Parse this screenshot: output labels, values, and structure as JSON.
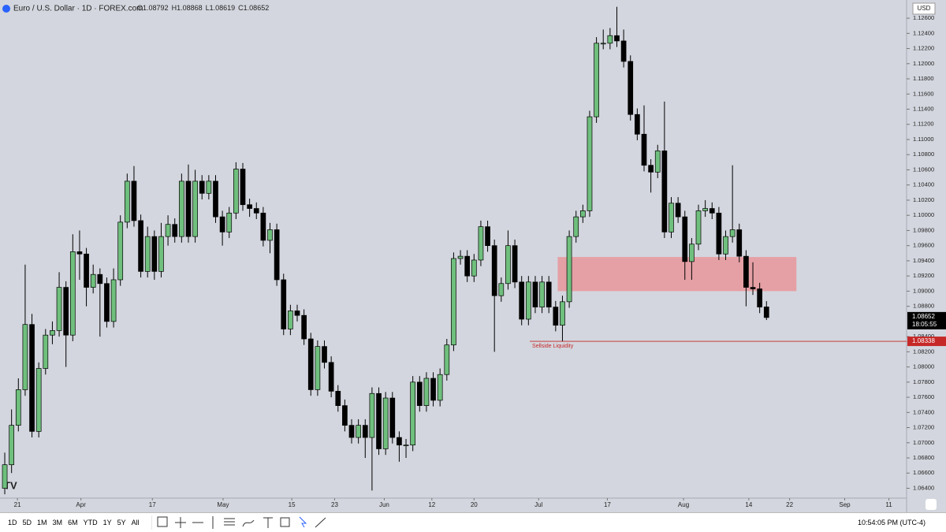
{
  "header": {
    "title": "Euro / U.S. Dollar · 1D · FOREX.com",
    "ohlc_labels": [
      "O",
      "H",
      "L",
      "C"
    ]
  },
  "chart_data": {
    "type": "candlestick",
    "open": [
      1.064,
      1.0671,
      1.0723,
      1.077,
      1.0856,
      1.0715,
      1.0798,
      1.0842,
      1.0848,
      1.0905,
      1.0842,
      1.0952,
      1.0949,
      1.0905,
      1.0922,
      1.091,
      1.086,
      1.0915,
      1.0991,
      1.1045,
      1.0993,
      1.0926,
      1.0972,
      1.0926,
      1.0972,
      1.0988,
      1.0972,
      1.1045,
      1.0972,
      1.1045,
      1.1029,
      1.1045,
      1.0998,
      1.0978,
      1.1003,
      1.1061,
      1.1014,
      1.1009,
      1.1003,
      1.0967,
      1.0981,
      1.0915,
      1.085,
      1.0874,
      1.0868,
      1.0837,
      1.077,
      1.0827,
      1.0806,
      1.0768,
      1.0749,
      1.0723,
      1.0707,
      1.0723,
      1.0707,
      1.0765,
      1.0692,
      1.0759,
      1.0707,
      1.0697,
      1.0697,
      1.078,
      1.0749,
      1.0785,
      1.0756,
      1.079,
      1.0829,
      1.0943,
      1.0946,
      1.092,
      1.0941,
      1.0985,
      1.096,
      1.0894,
      1.091,
      1.096,
      1.0912,
      1.0863,
      1.0912,
      1.0879,
      1.0912,
      1.0879,
      1.0855,
      1.0886,
      1.0972,
      1.0998,
      1.1006,
      1.113,
      1.1227,
      1.1227,
      1.1237,
      1.123,
      1.1203,
      1.1133,
      1.1107,
      1.1066,
      1.1057,
      1.1085,
      1.0978,
      1.1016,
      1.0998,
      1.0939,
      1.0962,
      1.1006,
      1.1009,
      1.1003,
      1.0949,
      1.0972,
      1.0981,
      1.0946,
      1.0905,
      1.0903,
      1.08792
    ],
    "high": [
      1.0687,
      1.0744,
      1.0785,
      1.0935,
      1.087,
      1.0806,
      1.085,
      1.086,
      1.0925,
      1.0913,
      1.0975,
      1.098,
      1.0957,
      1.0935,
      1.093,
      1.0918,
      1.093,
      1.1,
      1.1055,
      1.1065,
      1.1001,
      1.0985,
      1.098,
      1.099,
      1.1,
      1.0996,
      1.1055,
      1.1067,
      1.106,
      1.1053,
      1.1053,
      1.1053,
      1.1006,
      1.1011,
      1.107,
      1.1069,
      1.1022,
      1.1017,
      1.1011,
      1.099,
      1.0989,
      1.0923,
      1.0882,
      1.0882,
      1.0876,
      1.0845,
      1.0835,
      1.0835,
      1.0814,
      1.0776,
      1.0757,
      1.0731,
      1.0731,
      1.0731,
      1.0773,
      1.0773,
      1.0767,
      1.0767,
      1.0715,
      1.0705,
      1.0788,
      1.0788,
      1.0793,
      1.0793,
      1.0798,
      1.0837,
      1.0951,
      1.0954,
      1.0954,
      1.0949,
      1.0993,
      1.0993,
      1.0968,
      1.0918,
      1.098,
      1.0968,
      1.092,
      1.092,
      1.092,
      1.092,
      1.092,
      1.0887,
      1.0894,
      1.098,
      1.1006,
      1.1014,
      1.1138,
      1.1235,
      1.1245,
      1.1247,
      1.1275,
      1.1245,
      1.1211,
      1.1141,
      1.1145,
      1.1074,
      1.1093,
      1.115,
      1.1024,
      1.1024,
      1.1006,
      1.097,
      1.1014,
      1.102,
      1.1017,
      1.1011,
      1.098,
      1.1066,
      1.0989,
      1.0954,
      1.0938,
      1.0911,
      1.08868
    ],
    "low": [
      1.0632,
      1.066,
      1.0715,
      1.0762,
      1.0707,
      1.0707,
      1.079,
      1.083,
      1.084,
      1.08,
      1.0834,
      1.0915,
      1.088,
      1.0897,
      1.084,
      1.0852,
      1.0852,
      1.0907,
      1.0983,
      1.0985,
      1.0918,
      1.0918,
      1.0915,
      1.0918,
      1.096,
      1.0964,
      1.0964,
      1.0964,
      1.0964,
      1.1021,
      1.1021,
      1.099,
      1.096,
      1.097,
      1.0995,
      1.1006,
      1.0998,
      1.0995,
      1.0959,
      1.095,
      1.0907,
      1.0842,
      1.0842,
      1.086,
      1.0829,
      1.0762,
      1.0762,
      1.0798,
      1.076,
      1.0741,
      1.0715,
      1.0699,
      1.0699,
      1.068,
      1.0637,
      1.0684,
      1.0684,
      1.0699,
      1.0675,
      1.068,
      1.0689,
      1.0741,
      1.0741,
      1.0748,
      1.0748,
      1.0782,
      1.0821,
      1.0935,
      1.0912,
      1.0912,
      1.0933,
      1.0952,
      1.082,
      1.0886,
      1.0902,
      1.0904,
      1.0855,
      1.0855,
      1.0871,
      1.0871,
      1.0871,
      1.0847,
      1.0834,
      1.0878,
      1.0964,
      1.099,
      1.0998,
      1.1122,
      1.1219,
      1.1219,
      1.1222,
      1.1195,
      1.1125,
      1.1099,
      1.1058,
      1.103,
      1.1049,
      1.097,
      1.097,
      1.099,
      1.0915,
      1.0915,
      1.0954,
      1.0998,
      1.0995,
      1.0941,
      1.0941,
      1.0964,
      1.0938,
      1.088,
      1.0895,
      1.0871,
      1.08619
    ],
    "close": [
      1.0671,
      1.0723,
      1.077,
      1.0856,
      1.0715,
      1.0798,
      1.0842,
      1.0848,
      1.0905,
      1.0842,
      1.0952,
      1.0949,
      1.0905,
      1.0922,
      1.091,
      1.086,
      1.0915,
      1.0991,
      1.1045,
      1.0993,
      1.0926,
      1.0972,
      1.0926,
      1.0972,
      1.0988,
      1.0972,
      1.1045,
      1.0972,
      1.1045,
      1.1029,
      1.1045,
      1.0998,
      1.0978,
      1.1003,
      1.1061,
      1.1014,
      1.1009,
      1.1003,
      1.0967,
      1.0981,
      1.0915,
      1.085,
      1.0874,
      1.0868,
      1.0837,
      1.077,
      1.0827,
      1.0806,
      1.0768,
      1.0749,
      1.0723,
      1.0707,
      1.0723,
      1.0707,
      1.0765,
      1.0692,
      1.0759,
      1.0707,
      1.0697,
      1.0697,
      1.078,
      1.0749,
      1.0785,
      1.0756,
      1.079,
      1.0829,
      1.0943,
      1.0946,
      1.092,
      1.0941,
      1.0985,
      1.096,
      1.0894,
      1.091,
      1.096,
      1.0912,
      1.0863,
      1.0912,
      1.0879,
      1.0912,
      1.0879,
      1.0855,
      1.0886,
      1.0972,
      1.0998,
      1.1006,
      1.113,
      1.1227,
      1.1227,
      1.1237,
      1.123,
      1.1203,
      1.1133,
      1.1107,
      1.1066,
      1.1057,
      1.1085,
      1.0978,
      1.1016,
      1.0998,
      1.0939,
      1.0962,
      1.1006,
      1.1009,
      1.1003,
      1.0949,
      1.0972,
      1.0981,
      1.0946,
      1.0905,
      1.0903,
      1.0879,
      1.08652
    ],
    "up_color": "#6fbf7d",
    "down_color": "#000000",
    "xlim": [
      -0.7,
      132.6
    ],
    "xticks": [
      {
        "value": 1.86,
        "label": "21"
      },
      {
        "value": 11.2,
        "label": "Apr"
      },
      {
        "value": 21.7,
        "label": "17"
      },
      {
        "value": 32.1,
        "label": "May"
      },
      {
        "value": 42.2,
        "label": "15"
      },
      {
        "value": 48.5,
        "label": "23"
      },
      {
        "value": 55.8,
        "label": "Jun"
      },
      {
        "value": 62.8,
        "label": "12"
      },
      {
        "value": 69,
        "label": "20"
      },
      {
        "value": 78.5,
        "label": "Jul"
      },
      {
        "value": 88.6,
        "label": "17"
      },
      {
        "value": 99.8,
        "label": "Aug"
      },
      {
        "value": 109.4,
        "label": "14"
      },
      {
        "value": 115.4,
        "label": "22"
      },
      {
        "value": 123.5,
        "label": "Sep"
      },
      {
        "value": 130,
        "label": "11"
      }
    ],
    "ylim": [
      1.0627,
      1.1284
    ],
    "yticks": [
      {
        "value": 1.064,
        "label": "1.06400"
      },
      {
        "value": 1.066,
        "label": "1.06600"
      },
      {
        "value": 1.068,
        "label": "1.06800"
      },
      {
        "value": 1.07,
        "label": "1.07000"
      },
      {
        "value": 1.072,
        "label": "1.07200"
      },
      {
        "value": 1.074,
        "label": "1.07400"
      },
      {
        "value": 1.076,
        "label": "1.07600"
      },
      {
        "value": 1.078,
        "label": "1.07800"
      },
      {
        "value": 1.08,
        "label": "1.08000"
      },
      {
        "value": 1.082,
        "label": "1.08200"
      },
      {
        "value": 1.084,
        "label": "1.08400"
      },
      {
        "value": 1.088,
        "label": "1.08800"
      },
      {
        "value": 1.09,
        "label": "1.09000"
      },
      {
        "value": 1.092,
        "label": "1.09200"
      },
      {
        "value": 1.094,
        "label": "1.09400"
      },
      {
        "value": 1.096,
        "label": "1.09600"
      },
      {
        "value": 1.098,
        "label": "1.09800"
      },
      {
        "value": 1.1,
        "label": "1.10000"
      },
      {
        "value": 1.102,
        "label": "1.10200"
      },
      {
        "value": 1.104,
        "label": "1.10400"
      },
      {
        "value": 1.106,
        "label": "1.10600"
      },
      {
        "value": 1.108,
        "label": "1.10800"
      },
      {
        "value": 1.11,
        "label": "1.11000"
      },
      {
        "value": 1.112,
        "label": "1.11200"
      },
      {
        "value": 1.114,
        "label": "1.11400"
      },
      {
        "value": 1.116,
        "label": "1.11600"
      },
      {
        "value": 1.118,
        "label": "1.11800"
      },
      {
        "value": 1.12,
        "label": "1.12000"
      },
      {
        "value": 1.122,
        "label": "1.12200"
      },
      {
        "value": 1.124,
        "label": "1.12400"
      },
      {
        "value": 1.126,
        "label": "1.12600"
      }
    ],
    "currency": "USD",
    "countdown": "18:05:55",
    "zone": {
      "x": [
        81.3,
        116.4
      ],
      "y": [
        1.09,
        1.0945
      ],
      "color": "#e8969b"
    },
    "level": {
      "value": 1.08338,
      "x_start": 77.2,
      "text": "Sellside Liquidity",
      "color": "#c62828"
    }
  },
  "toolbar": {
    "ranges": [
      "1D",
      "5D",
      "1M",
      "3M",
      "6M",
      "YTD",
      "1Y",
      "5Y",
      "All"
    ],
    "time": "10:54:05 PM (UTC-4)"
  }
}
